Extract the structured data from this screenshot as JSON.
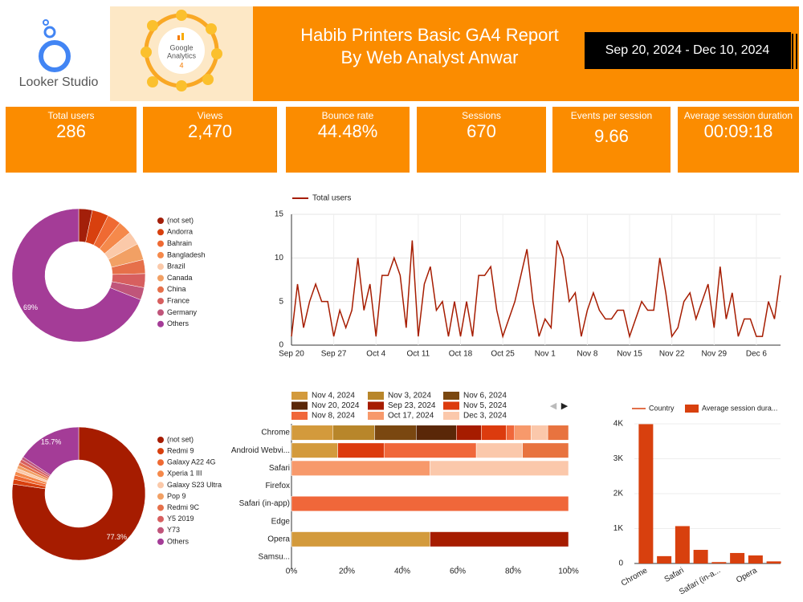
{
  "header": {
    "logo_text": "Looker Studio",
    "ga_badge": [
      "Google",
      "Analytics",
      "4"
    ],
    "title": [
      "Habib Printers Basic GA4 Report",
      "By Web Analyst Anwar"
    ],
    "date_range": "Sep 20, 2024 - Dec 10, 2024"
  },
  "kpis": [
    {
      "label": "Total users",
      "value": "286"
    },
    {
      "label": "Views",
      "value": "2,470"
    },
    {
      "label": "Bounce rate",
      "value": "44.48%"
    },
    {
      "label": "Sessions",
      "value": "670"
    },
    {
      "label": "Events per session",
      "value": "9.66"
    },
    {
      "label": "Average session duration",
      "value": "00:09:18"
    }
  ],
  "chart_data": [
    {
      "type": "donut",
      "categories": [
        "(not set)",
        "Andorra",
        "Bahrain",
        "Bangladesh",
        "Brazil",
        "Canada",
        "China",
        "France",
        "Germany",
        "Others"
      ],
      "values": [
        3.3,
        4,
        3.3,
        3.3,
        3.3,
        4,
        3.4,
        3.4,
        3,
        69
      ],
      "value_labels": [
        null,
        null,
        null,
        null,
        null,
        null,
        null,
        null,
        null,
        "69%"
      ],
      "colors": [
        "#a31f0a",
        "#d8400e",
        "#ef6a33",
        "#f5894b",
        "#fbc9a9",
        "#f2a064",
        "#e6704a",
        "#d75f5f",
        "#c0557a",
        "#a43c97"
      ],
      "legend": "right"
    },
    {
      "type": "line",
      "categories": [
        "Sep 20",
        null,
        null,
        null,
        null,
        null,
        null,
        "Sep 27",
        null,
        null,
        null,
        null,
        null,
        null,
        "Oct 4",
        null,
        null,
        null,
        null,
        null,
        null,
        "Oct 11",
        null,
        null,
        null,
        null,
        null,
        null,
        "Oct 18",
        null,
        null,
        null,
        null,
        null,
        null,
        "Oct 25",
        null,
        null,
        null,
        null,
        null,
        null,
        "Nov 1",
        null,
        null,
        null,
        null,
        null,
        null,
        "Nov 8",
        null,
        null,
        null,
        null,
        null,
        null,
        "Nov 15",
        null,
        null,
        null,
        null,
        null,
        null,
        "Nov 22",
        null,
        null,
        null,
        null,
        null,
        null,
        "Nov 29",
        null,
        null,
        null,
        null,
        null,
        null,
        "Dec 6",
        null,
        null,
        null,
        null
      ],
      "series": [
        {
          "name": "Total users",
          "color": "#a61c00",
          "values": [
            1,
            7,
            2,
            5,
            7,
            5,
            5,
            1,
            4,
            2,
            4,
            10,
            4,
            7,
            1,
            8,
            8,
            10,
            8,
            2,
            12,
            1,
            7,
            9,
            4,
            5,
            1,
            5,
            1,
            5,
            1,
            8,
            8,
            9,
            4,
            1,
            3,
            5,
            8,
            11,
            5,
            1,
            3,
            2,
            12,
            10,
            5,
            6,
            1,
            4,
            6,
            4,
            3,
            3,
            4,
            4,
            1,
            3,
            5,
            4,
            4,
            10,
            6,
            1,
            2,
            5,
            6,
            3,
            5,
            7,
            2,
            9,
            3,
            6,
            1,
            3,
            3,
            1,
            1,
            5,
            3,
            8
          ]
        }
      ],
      "ylim": [
        0,
        15
      ],
      "yticks": [
        0,
        5,
        10,
        15
      ],
      "grid": true,
      "legend": "top"
    },
    {
      "type": "donut",
      "categories": [
        "(not set)",
        "Redmi 9",
        "Galaxy A22 4G",
        "Xperia 1 III",
        "Galaxy S23 Ultra",
        "Pop 9",
        "Redmi 9C",
        "Y5 2019",
        "Y73",
        "Others"
      ],
      "values": [
        77.3,
        1.2,
        1,
        0.9,
        0.8,
        0.8,
        0.8,
        0.8,
        0.7,
        15.7
      ],
      "value_labels": [
        "77.3%",
        null,
        null,
        null,
        null,
        null,
        null,
        null,
        null,
        "15.7%"
      ],
      "colors": [
        "#a61c00",
        "#d8400e",
        "#ef6a33",
        "#f5894b",
        "#fbc9a9",
        "#f2a064",
        "#e6704a",
        "#d75f5f",
        "#c0557a",
        "#a43c97"
      ],
      "legend": "right"
    },
    {
      "type": "hbar",
      "stacked": true,
      "categories": [
        "Chrome",
        "Android Webvi...",
        "Safari",
        "Firefox",
        "Safari (in-app)",
        "Edge",
        "Opera",
        "Samsu..."
      ],
      "series": [
        {
          "name": "Nov 4, 2024",
          "color": "#d39a3c",
          "values": [
            15,
            16.7,
            0,
            0,
            0,
            0,
            50,
            0
          ]
        },
        {
          "name": "Nov 3, 2024",
          "color": "#b8862a",
          "values": [
            15,
            0,
            0,
            0,
            0,
            0,
            0,
            0
          ]
        },
        {
          "name": "Nov 6, 2024",
          "color": "#7a4710",
          "values": [
            15,
            0,
            0,
            0,
            0,
            0,
            0,
            0
          ]
        },
        {
          "name": "Nov 20, 2024",
          "color": "#5a2708",
          "values": [
            14.5,
            0,
            0,
            0,
            0,
            0,
            0,
            0
          ]
        },
        {
          "name": "Sep 23, 2024",
          "color": "#a61c00",
          "values": [
            9,
            0,
            0,
            0,
            0,
            0,
            50,
            0
          ]
        },
        {
          "name": "Nov 5, 2024",
          "color": "#dc3b0e",
          "values": [
            9,
            16.7,
            0,
            0,
            0,
            0,
            0,
            0
          ]
        },
        {
          "name": "Nov 8, 2024",
          "color": "#f0673a",
          "values": [
            3,
            33.3,
            0,
            0,
            100,
            0,
            0,
            0
          ]
        },
        {
          "name": "Oct 17, 2024",
          "color": "#f7996b",
          "values": [
            6,
            0,
            50,
            0,
            0,
            0,
            0,
            0
          ]
        },
        {
          "name": "Dec 3, 2024",
          "color": "#fbc8ab",
          "values": [
            6,
            16.7,
            50,
            0,
            0,
            0,
            0,
            0
          ]
        },
        {
          "color": "#e8733f",
          "values": [
            7.5,
            16.6,
            0,
            0,
            0,
            0,
            0,
            0
          ]
        }
      ],
      "xlim": [
        0,
        100
      ],
      "xticks": [
        {
          "value": 0,
          "label": "0%"
        },
        {
          "value": 20,
          "label": "20%"
        },
        {
          "value": 40,
          "label": "40%"
        },
        {
          "value": 60,
          "label": "60%"
        },
        {
          "value": 80,
          "label": "80%"
        },
        {
          "value": 100,
          "label": "100%"
        }
      ],
      "legend": "top"
    },
    {
      "type": "bar",
      "categories": [
        "Chrome",
        null,
        "Safari",
        null,
        "Safari (in-a...",
        null,
        "Opera",
        null
      ],
      "series": [
        {
          "name": "Country",
          "color": "#d8400e",
          "style": "line",
          "values": [
            null,
            null,
            null,
            null,
            null,
            null,
            null,
            null
          ]
        },
        {
          "name": "Average session dura...",
          "color": "#d8400e",
          "style": "bar",
          "values": [
            3990,
            210,
            1070,
            390,
            40,
            300,
            230,
            60
          ]
        }
      ],
      "ylim": [
        0,
        4000
      ],
      "yticks": [
        0,
        {
          "value": 1000,
          "label": "1K"
        },
        {
          "value": 2000,
          "label": "2K"
        },
        {
          "value": 3000,
          "label": "3K"
        },
        {
          "value": 4000,
          "label": "4K"
        }
      ],
      "legend": "top"
    }
  ]
}
